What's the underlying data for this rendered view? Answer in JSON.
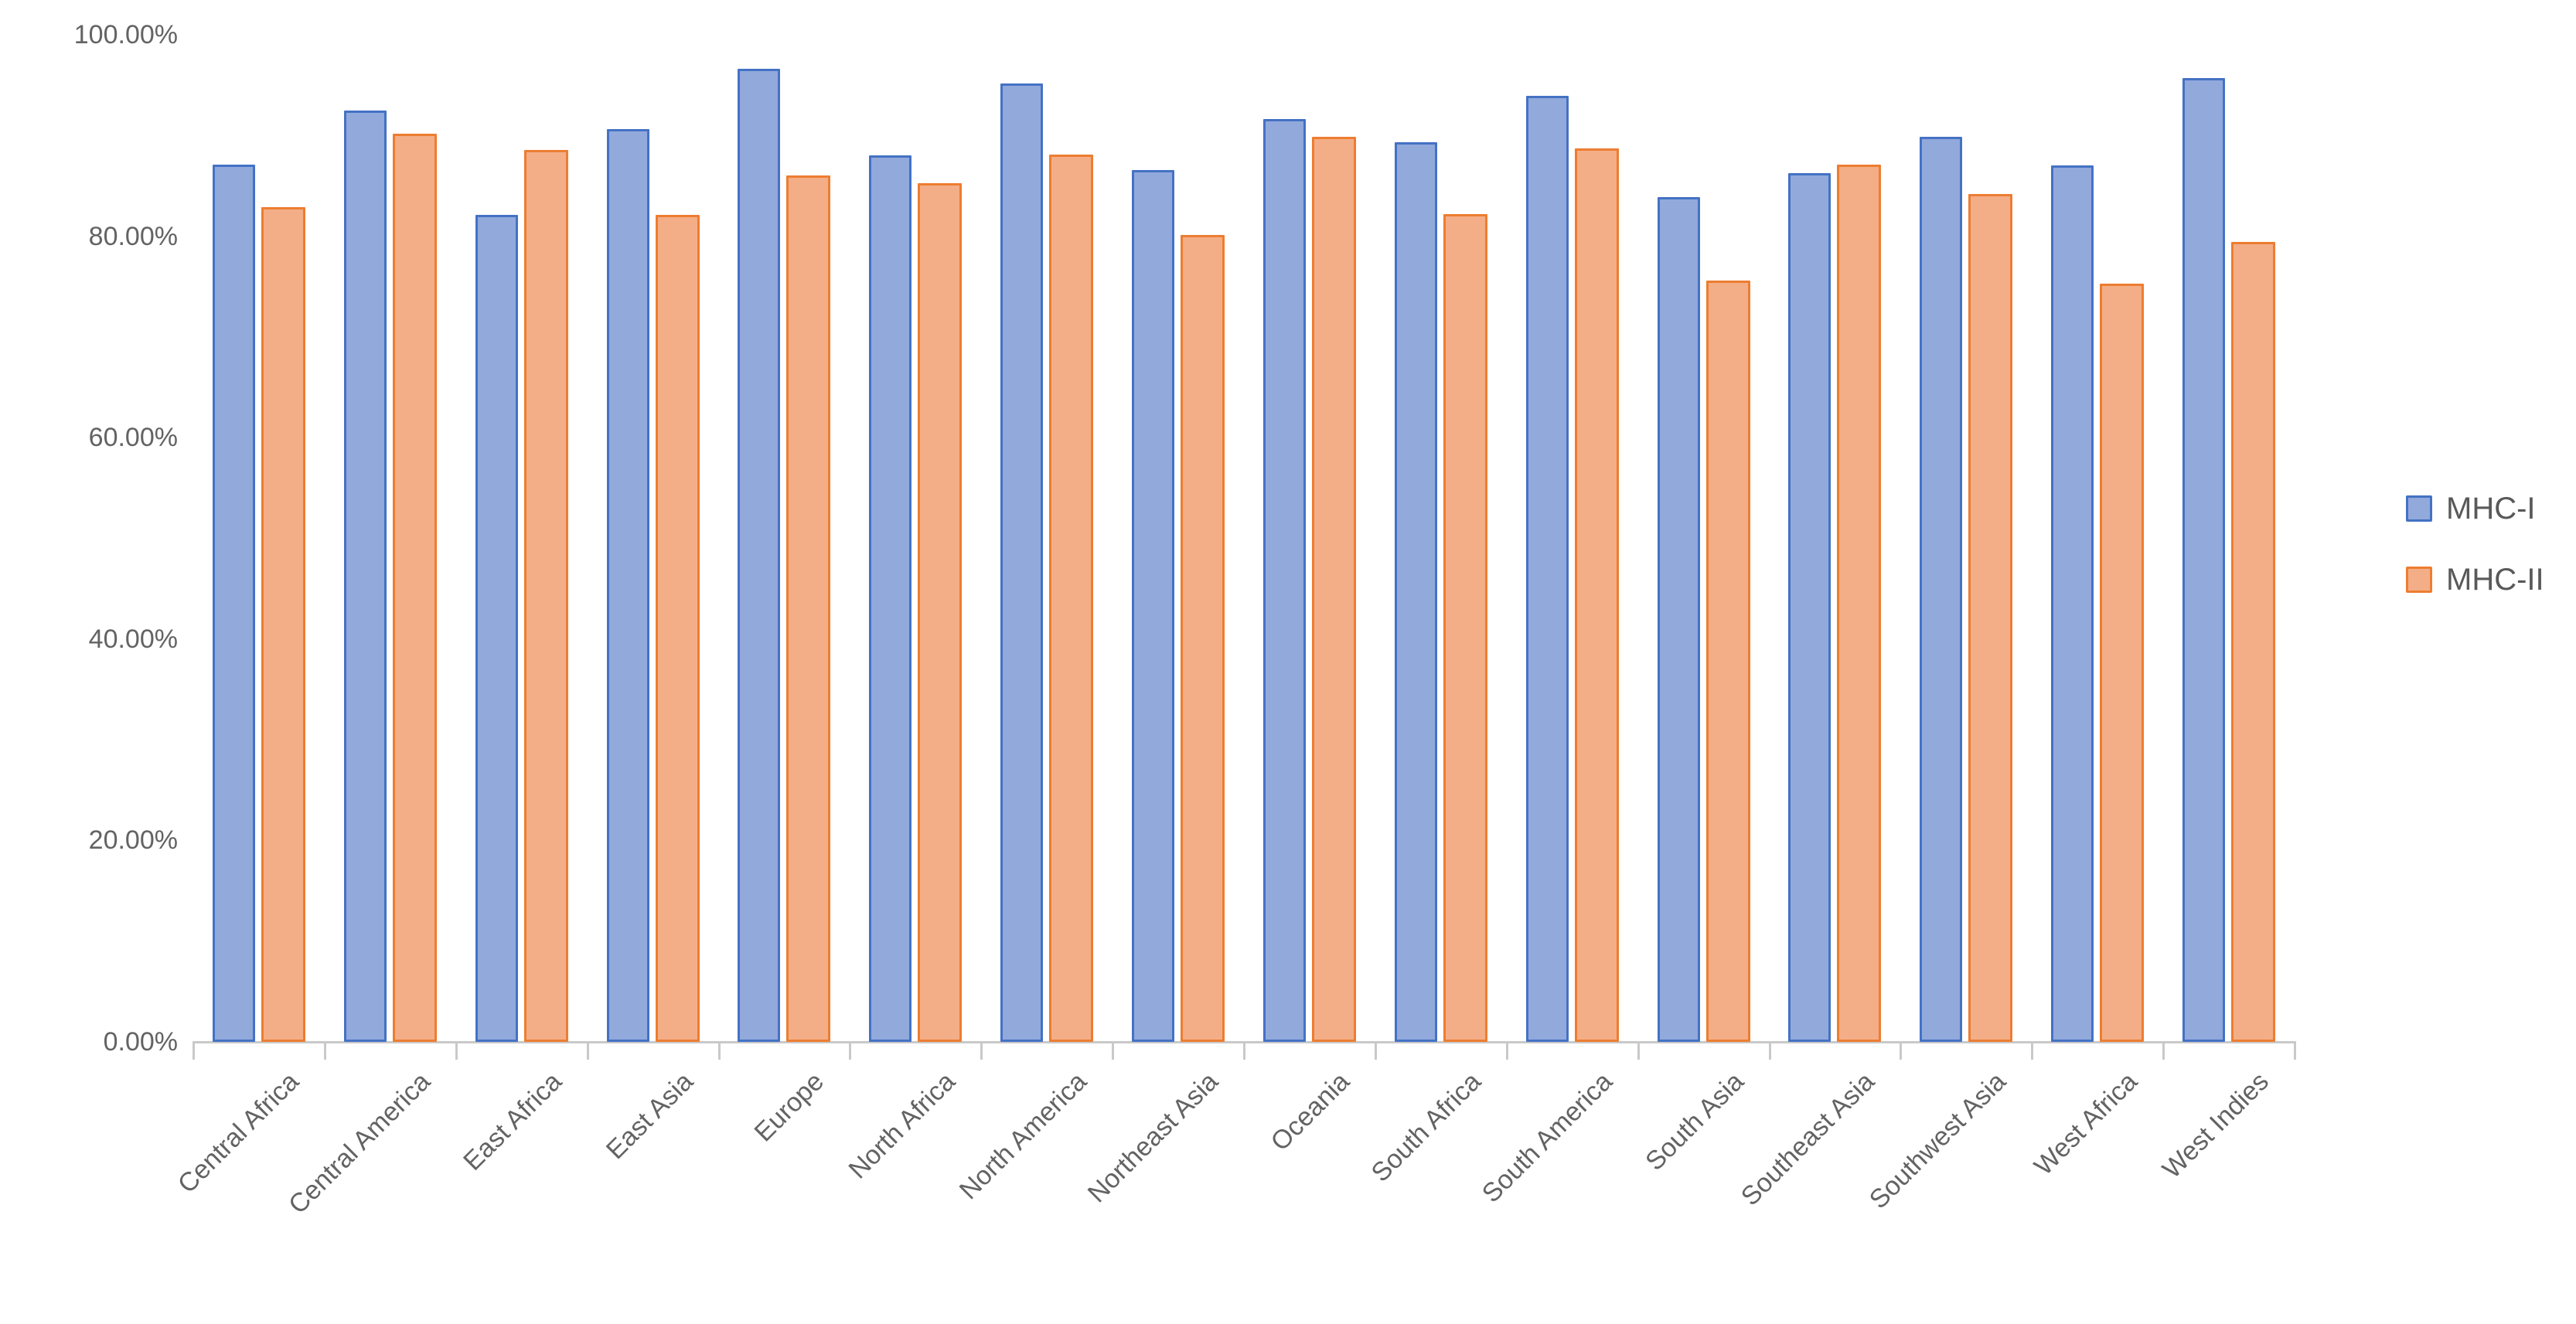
{
  "chart_data": {
    "type": "bar",
    "title": "",
    "xlabel": "",
    "ylabel": "",
    "categories": [
      "Central Africa",
      "Central America",
      "East Africa",
      "East Asia",
      "Europe",
      "North Africa",
      "North America",
      "Northeast Asia",
      "Oceania",
      "South Africa",
      "South America",
      "South Asia",
      "Southeast Asia",
      "Southwest Asia",
      "West Africa",
      "West Indies"
    ],
    "series": [
      {
        "name": "MHC-I",
        "fill": "#92A9DC",
        "border": "#4472C4",
        "values": [
          87.1,
          92.5,
          82.1,
          90.6,
          96.6,
          88.0,
          95.2,
          86.6,
          91.6,
          89.3,
          93.9,
          83.9,
          86.3,
          89.9,
          87.0,
          95.7
        ]
      },
      {
        "name": "MHC-II",
        "fill": "#F4AE87",
        "border": "#ED7D31",
        "values": [
          82.9,
          90.2,
          88.6,
          82.1,
          86.0,
          85.3,
          88.1,
          80.1,
          89.9,
          82.2,
          88.7,
          75.6,
          87.1,
          84.2,
          75.3,
          79.4
        ]
      }
    ],
    "ylim": [
      0,
      100
    ],
    "ytick_values": [
      0,
      20,
      40,
      60,
      80,
      100
    ],
    "ytick_labels": [
      "0.00%",
      "20.00%",
      "40.00%",
      "60.00%",
      "80.00%",
      "100.00%"
    ],
    "grid": false,
    "legend_position": "right",
    "axis_color": "#C9C9C9",
    "label_color": "#636363"
  },
  "legend": {
    "items": [
      {
        "label": "MHC-I"
      },
      {
        "label": "MHC-II"
      }
    ]
  }
}
